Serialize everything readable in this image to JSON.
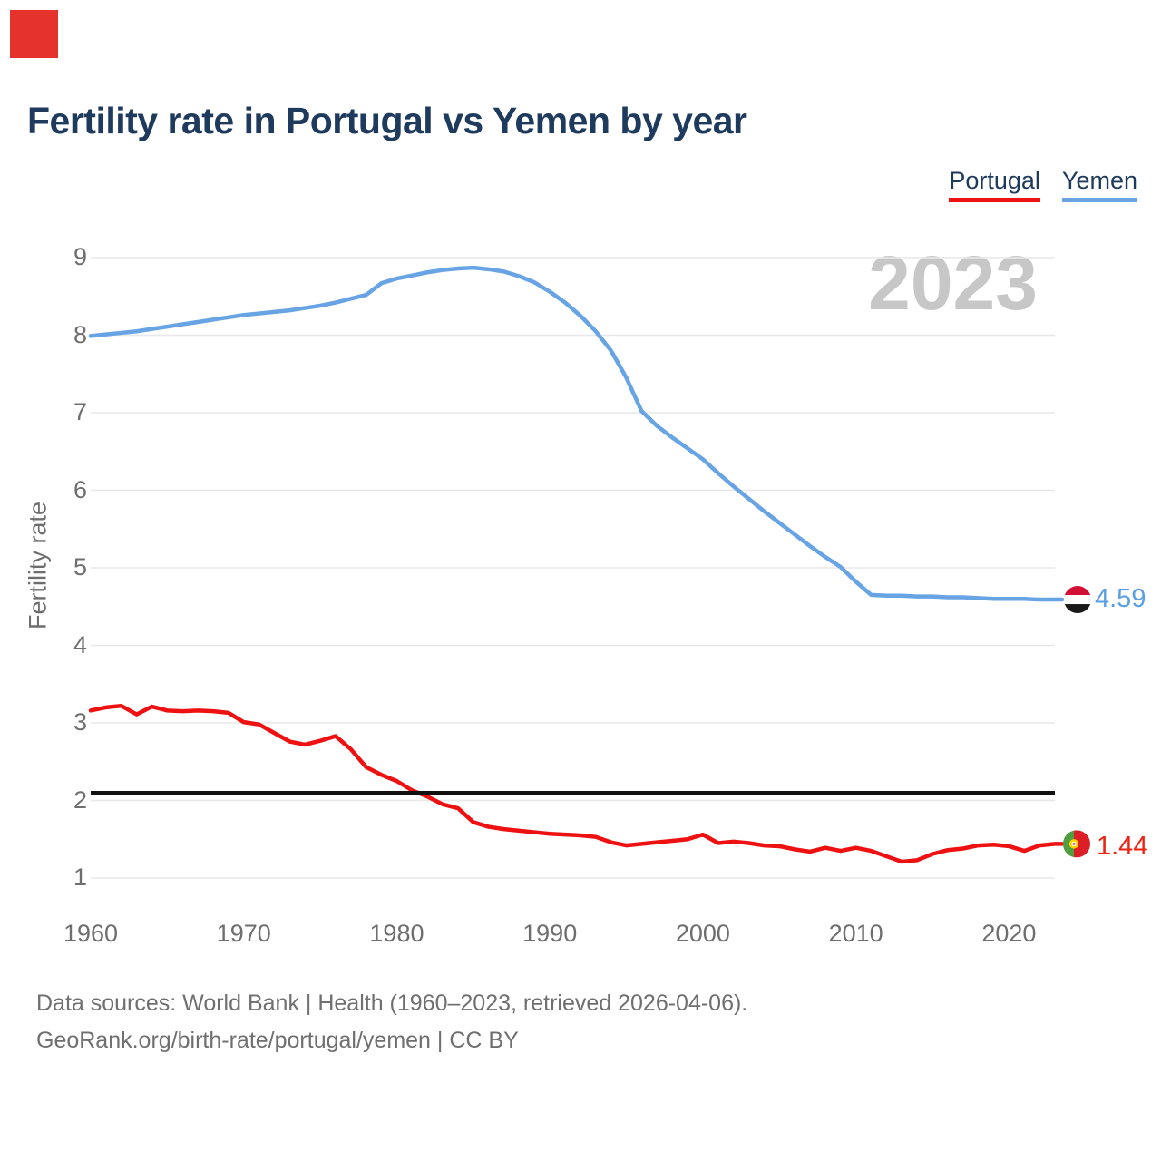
{
  "title": "Fertility rate in Portugal vs Yemen by year",
  "legend": {
    "portugal": "Portugal",
    "yemen": "Yemen"
  },
  "watermark": "2023",
  "y_axis": {
    "label": "Fertility rate",
    "ticks": [
      9,
      8,
      7,
      6,
      5,
      4,
      3,
      2,
      1
    ]
  },
  "x_axis": {
    "ticks": [
      1960,
      1970,
      1980,
      1990,
      2000,
      2010,
      2020
    ]
  },
  "end_labels": {
    "yemen_value": "4.59",
    "portugal_value": "1.44"
  },
  "footer": {
    "line1": "Data sources: World Bank | Health (1960–2023, retrieved 2026-04-06).",
    "line2": "GeoRank.org/birth-rate/portugal/yemen | CC BY"
  },
  "colors": {
    "portugal_line": "#ee1111",
    "yemen_line": "#68a4e4",
    "portugal_label": "#ee2211",
    "yemen_label": "#5b9fe3",
    "reference_line": "#111111",
    "gridline": "#e8e8e8",
    "title_text": "#1e3a5c",
    "axis_text": "#6e6e6e",
    "watermark_text": "#c7c7c7",
    "overlay_square": "#e5322d",
    "yemen_flag": [
      "#d21034",
      "#ffffff",
      "#1a1a1a"
    ],
    "portugal_flag": {
      "green": "#4f9e3f",
      "red": "#dc1f26",
      "emblem_gold": "#ffd400"
    }
  },
  "chart_data": {
    "type": "line",
    "title": "Fertility rate in Portugal vs Yemen by year",
    "xlabel": "",
    "ylabel": "Fertility rate",
    "x_range": [
      1960,
      2023
    ],
    "x_step": 1,
    "ylim": [
      1,
      9
    ],
    "grid": "horizontal",
    "legend_position": "top-right",
    "reference_line": 2.1,
    "series": [
      {
        "name": "Yemen",
        "color": "#68a4e4",
        "end_value": 4.59,
        "values": [
          7.99,
          8.01,
          8.03,
          8.05,
          8.08,
          8.11,
          8.14,
          8.17,
          8.2,
          8.23,
          8.26,
          8.28,
          8.3,
          8.32,
          8.35,
          8.38,
          8.42,
          8.47,
          8.52,
          8.67,
          8.73,
          8.77,
          8.81,
          8.84,
          8.86,
          8.87,
          8.85,
          8.82,
          8.76,
          8.68,
          8.56,
          8.42,
          8.25,
          8.05,
          7.8,
          7.45,
          7.02,
          6.83,
          6.68,
          6.54,
          6.4,
          6.22,
          6.05,
          5.89,
          5.73,
          5.58,
          5.43,
          5.28,
          5.14,
          5.01,
          4.82,
          4.65,
          4.64,
          4.64,
          4.63,
          4.63,
          4.62,
          4.62,
          4.61,
          4.6,
          4.6,
          4.6,
          4.59,
          4.59
        ]
      },
      {
        "name": "Portugal",
        "color": "#ee1111",
        "end_value": 1.44,
        "values": [
          3.16,
          3.2,
          3.22,
          3.11,
          3.21,
          3.16,
          3.15,
          3.16,
          3.15,
          3.13,
          3.01,
          2.98,
          2.87,
          2.76,
          2.72,
          2.77,
          2.83,
          2.66,
          2.43,
          2.33,
          2.25,
          2.13,
          2.05,
          1.95,
          1.9,
          1.72,
          1.66,
          1.63,
          1.61,
          1.59,
          1.57,
          1.56,
          1.55,
          1.53,
          1.46,
          1.42,
          1.44,
          1.46,
          1.48,
          1.5,
          1.56,
          1.45,
          1.47,
          1.45,
          1.42,
          1.41,
          1.37,
          1.34,
          1.39,
          1.35,
          1.39,
          1.35,
          1.28,
          1.21,
          1.23,
          1.31,
          1.36,
          1.38,
          1.42,
          1.43,
          1.41,
          1.35,
          1.42,
          1.44
        ]
      }
    ]
  }
}
